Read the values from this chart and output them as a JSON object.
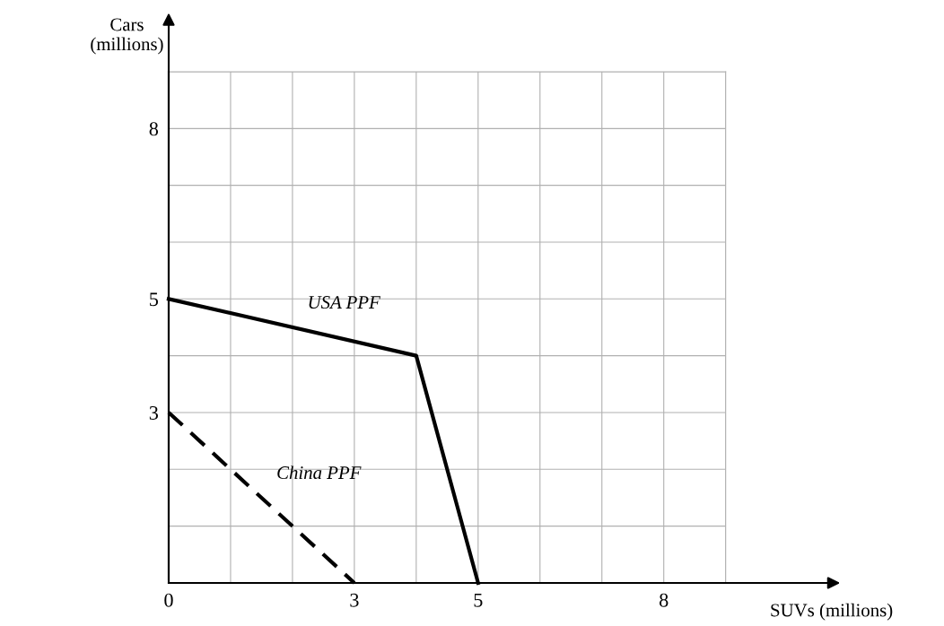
{
  "chart_data": {
    "type": "line",
    "xlabel": "SUVs (millions)",
    "ylabel": "Cars\n(millions)",
    "x": [
      0,
      4,
      5
    ],
    "series": [
      {
        "name": "USA PPF",
        "color": "#000000",
        "values": [
          5,
          4,
          0
        ],
        "line_style": "solid"
      },
      {
        "name": "China PPF",
        "color": "#000000",
        "x": [
          0,
          3
        ],
        "values": [
          3,
          0
        ],
        "line_style": "dashed"
      }
    ],
    "xlim": [
      0,
      9
    ],
    "ylim": [
      0,
      9
    ],
    "xticks": [
      0,
      {
        "value": 1,
        "label": null
      },
      {
        "value": 2,
        "label": null
      },
      3,
      {
        "value": 4,
        "label": null
      },
      5,
      {
        "value": 6,
        "label": null
      },
      {
        "value": 7,
        "label": null
      },
      8,
      {
        "value": 9,
        "label": null
      }
    ],
    "yticks": [
      {
        "value": 0,
        "label": null
      },
      {
        "value": 1,
        "label": null
      },
      {
        "value": 2,
        "label": null
      },
      3,
      {
        "value": 4,
        "label": null
      },
      5,
      {
        "value": 6,
        "label": null
      },
      {
        "value": 7,
        "label": null
      },
      8,
      {
        "value": 9,
        "label": null
      }
    ],
    "grid": true,
    "marker": "none"
  }
}
